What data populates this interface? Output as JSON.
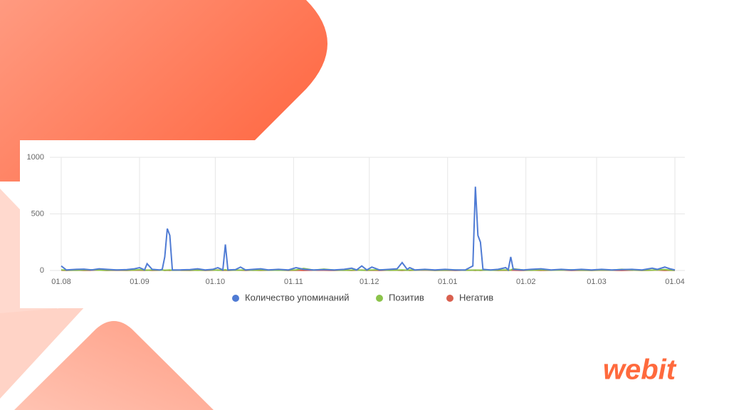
{
  "chart_data": {
    "type": "line",
    "x": [
      0,
      2,
      6,
      9,
      12,
      15,
      18,
      22,
      26,
      29,
      31,
      33,
      34,
      36,
      39,
      40,
      41,
      42,
      43,
      44,
      47,
      51,
      54,
      57,
      60,
      62,
      64,
      65,
      66,
      69,
      71,
      73,
      76,
      79,
      82,
      86,
      90,
      93,
      96,
      100,
      104,
      108,
      112,
      115,
      117,
      119,
      121,
      123,
      126,
      130,
      133,
      135,
      137,
      138,
      140,
      144,
      148,
      152,
      156,
      160,
      163,
      164,
      165,
      166,
      167,
      170,
      173,
      176,
      177,
      178,
      179,
      183,
      186,
      190,
      194,
      198,
      202,
      206,
      210,
      214,
      218,
      222,
      226,
      230,
      234,
      236,
      239,
      241,
      243
    ],
    "xlim": [
      0,
      243
    ],
    "xticks": [
      {
        "value": 0,
        "label": "01.08"
      },
      {
        "value": 31,
        "label": "01.09"
      },
      {
        "value": 61,
        "label": "01.10"
      },
      {
        "value": 92,
        "label": "01.11"
      },
      {
        "value": 122,
        "label": "01.12"
      },
      {
        "value": 153,
        "label": "01.01"
      },
      {
        "value": 184,
        "label": "01.02"
      },
      {
        "value": 212,
        "label": "01.03"
      },
      {
        "value": 243,
        "label": "01.04"
      }
    ],
    "ylim": [
      0,
      1000
    ],
    "yticks": [
      0,
      500,
      1000
    ],
    "grid": true,
    "legend": "bottom",
    "series": [
      {
        "name": "Количество упоминаний",
        "color": "#4f7bd4",
        "values": [
          40,
          5,
          10,
          12,
          5,
          15,
          10,
          5,
          8,
          15,
          25,
          5,
          60,
          10,
          5,
          10,
          120,
          370,
          310,
          5,
          5,
          8,
          15,
          5,
          10,
          25,
          5,
          230,
          5,
          8,
          30,
          5,
          10,
          15,
          5,
          10,
          5,
          25,
          10,
          5,
          8,
          5,
          10,
          20,
          5,
          40,
          5,
          30,
          5,
          10,
          15,
          70,
          10,
          25,
          5,
          10,
          5,
          10,
          5,
          5,
          40,
          740,
          310,
          250,
          10,
          5,
          10,
          25,
          5,
          120,
          10,
          5,
          10,
          15,
          5,
          10,
          5,
          10,
          5,
          10,
          5,
          8,
          10,
          5,
          20,
          10,
          30,
          15,
          5
        ]
      },
      {
        "name": "Позитив",
        "color": "#8bc34a",
        "values": [
          5,
          3,
          2,
          4,
          6,
          3,
          2,
          5,
          3,
          4,
          6,
          3,
          2,
          5,
          3,
          4,
          2,
          3,
          5,
          2,
          3,
          4,
          2,
          3,
          5,
          2,
          3,
          6,
          2,
          4,
          3,
          5,
          2,
          3,
          4,
          2,
          3,
          5,
          18,
          3,
          12,
          4,
          2,
          3,
          5,
          2,
          3,
          4,
          6,
          2,
          3,
          5,
          2,
          4,
          3,
          6,
          2,
          3,
          5,
          2,
          3,
          4,
          2,
          3,
          4,
          2,
          3,
          5,
          2,
          3,
          15,
          4,
          2,
          5,
          3,
          4,
          6,
          3,
          2,
          5,
          3,
          10,
          4,
          2,
          3,
          5,
          8,
          3,
          2
        ]
      },
      {
        "name": "Негатив",
        "color": "#d9604f",
        "values": [
          2,
          1,
          3,
          1,
          2,
          4,
          1,
          2,
          1,
          3,
          2,
          1,
          3,
          1,
          2,
          4,
          1,
          2,
          1,
          3,
          2,
          1,
          3,
          1,
          2,
          4,
          1,
          2,
          1,
          3,
          2,
          1,
          3,
          1,
          2,
          4,
          1,
          2,
          1,
          3,
          2,
          1,
          3,
          1,
          2,
          4,
          1,
          2,
          1,
          3,
          2,
          1,
          3,
          1,
          2,
          4,
          1,
          2,
          1,
          3,
          2,
          1,
          3,
          1,
          2,
          4,
          1,
          2,
          1,
          3,
          2,
          1,
          3,
          1,
          2,
          4,
          1,
          2,
          1,
          3,
          2,
          1,
          3,
          1,
          2,
          4,
          1,
          2,
          1
        ]
      }
    ]
  },
  "logo": "webit"
}
